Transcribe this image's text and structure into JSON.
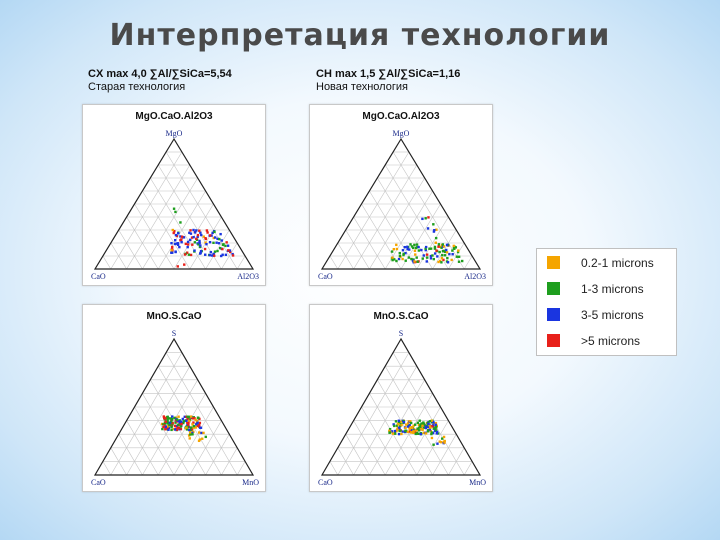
{
  "title": "Интерпретация технологии",
  "columns": [
    {
      "line1": "CX max 4,0  ∑Al/∑SiCa=5,54",
      "line2": "Старая технология"
    },
    {
      "line1": "CH max 1,5 ∑Al/∑SiCa=1,16",
      "line2": "Новая технология"
    }
  ],
  "panels": [
    {
      "title": "MgO.CaO.Al2O3",
      "top": "MgO",
      "left": "CaO",
      "right": "Al2O3"
    },
    {
      "title": "MgO.CaO.Al2O3",
      "top": "MgO",
      "left": "CaO",
      "right": "Al2O3"
    },
    {
      "title": "MnO.S.CaO",
      "top": "S",
      "left": "CaO",
      "right": "MnO"
    },
    {
      "title": "MnO.S.CaO",
      "top": "S",
      "left": "CaO",
      "right": "MnO"
    }
  ],
  "legend": [
    {
      "label": "0.2-1 microns",
      "color": "#f5a500"
    },
    {
      "label": "1-3 microns",
      "color": "#1e9e1e"
    },
    {
      "label": "3-5 microns",
      "color": "#1a35e0"
    },
    {
      "label": ">5 microns",
      "color": "#e8201a"
    }
  ]
}
